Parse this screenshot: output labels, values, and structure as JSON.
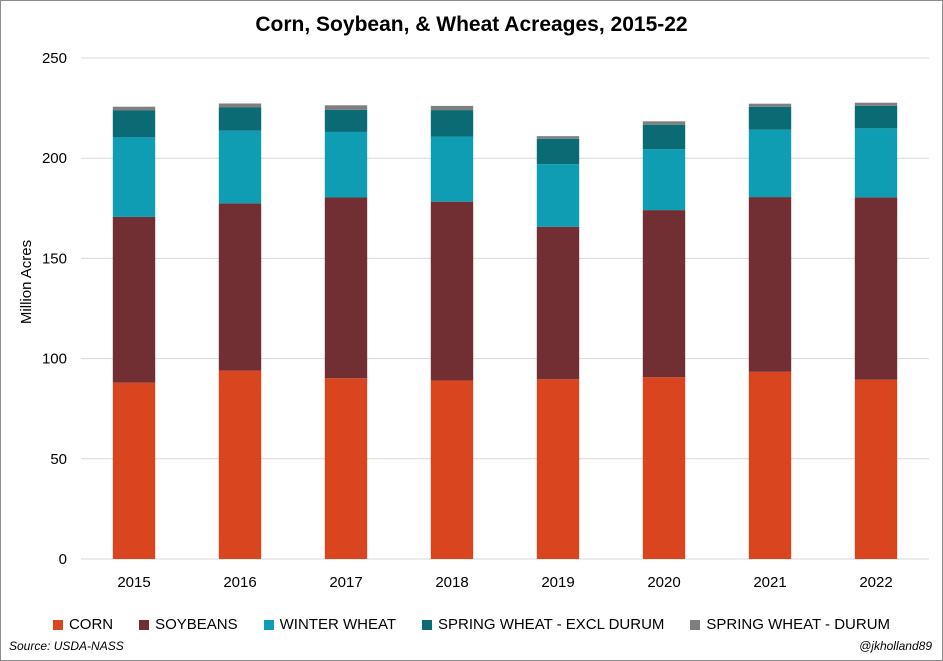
{
  "chart_data": {
    "type": "bar",
    "stacked": true,
    "title": "Corn, Soybean, & Wheat Acreages, 2015-22",
    "xlabel": "",
    "ylabel": "Million Acres",
    "ylim": [
      0,
      250
    ],
    "yticks": [
      "0",
      "50",
      "100",
      "150",
      "200",
      "250"
    ],
    "ytick_values": [
      0,
      50,
      100,
      150,
      200,
      250
    ],
    "grid": true,
    "legend_position": "bottom",
    "categories": [
      "2015",
      "2016",
      "2017",
      "2018",
      "2019",
      "2020",
      "2021",
      "2022"
    ],
    "series": [
      {
        "name": "CORN",
        "color": "#d9451e",
        "values": [
          88.0,
          94.0,
          90.2,
          89.1,
          89.7,
          90.7,
          93.4,
          89.5
        ]
      },
      {
        "name": "SOYBEANS",
        "color": "#722f33",
        "values": [
          82.7,
          83.5,
          90.2,
          89.2,
          76.1,
          83.4,
          87.2,
          91.0
        ]
      },
      {
        "name": "WINTER WHEAT",
        "color": "#0e9db2",
        "values": [
          39.7,
          36.2,
          32.7,
          32.5,
          31.2,
          30.4,
          33.6,
          34.4
        ]
      },
      {
        "name": "SPRING WHEAT - EXCL DURUM",
        "color": "#0a6b75",
        "values": [
          13.4,
          11.6,
          11.0,
          13.2,
          12.7,
          12.2,
          11.4,
          11.2
        ]
      },
      {
        "name": "SPRING WHEAT - DURUM",
        "color": "#7f7f7f",
        "values": [
          1.9,
          2.0,
          2.3,
          2.1,
          1.3,
          1.7,
          1.6,
          1.6
        ]
      }
    ]
  },
  "footer": {
    "source": "Source: USDA-NASS",
    "handle": "@jkholland89"
  }
}
